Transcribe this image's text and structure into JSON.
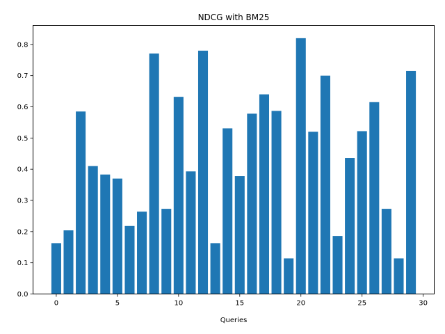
{
  "chart_data": {
    "type": "bar",
    "title": "NDCG with BM25",
    "xlabel": "Queries",
    "ylabel": "",
    "x": [
      0,
      1,
      2,
      3,
      4,
      5,
      6,
      7,
      8,
      9,
      10,
      11,
      12,
      13,
      14,
      15,
      16,
      17,
      18,
      19,
      20,
      21,
      22,
      23,
      24,
      25,
      26,
      27,
      28,
      29
    ],
    "values": [
      0.163,
      0.204,
      0.585,
      0.41,
      0.383,
      0.37,
      0.218,
      0.264,
      0.771,
      0.273,
      0.632,
      0.393,
      0.78,
      0.163,
      0.531,
      0.378,
      0.578,
      0.64,
      0.587,
      0.114,
      0.82,
      0.52,
      0.7,
      0.186,
      0.436,
      0.522,
      0.615,
      0.273,
      0.114,
      0.715
    ],
    "xlim": [
      -1.9,
      30.9
    ],
    "ylim": [
      0,
      0.861
    ],
    "xticks": [
      0,
      5,
      10,
      15,
      20,
      25,
      30
    ],
    "yticks": [
      0.0,
      0.1,
      0.2,
      0.3,
      0.4,
      0.5,
      0.6,
      0.7,
      0.8
    ],
    "xtick_labels": [
      "0",
      "5",
      "10",
      "15",
      "20",
      "25",
      "30"
    ],
    "ytick_labels": [
      "0.0",
      "0.1",
      "0.2",
      "0.3",
      "0.4",
      "0.5",
      "0.6",
      "0.7",
      "0.8"
    ],
    "bar_color": "#1f77b4",
    "grid": false,
    "legend": "none"
  }
}
